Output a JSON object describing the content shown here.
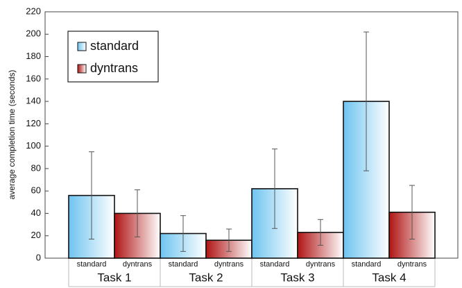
{
  "chart_data": {
    "type": "bar",
    "ylabel": "average completion time (seconds)",
    "categories": [
      "Task 1",
      "Task 2",
      "Task 3",
      "Task 4"
    ],
    "series": [
      {
        "name": "standard",
        "color": "#6ec4f0",
        "values": [
          56,
          22,
          62,
          140
        ],
        "errors": [
          39,
          16,
          35.5,
          62
        ]
      },
      {
        "name": "dyntrans",
        "color": "#b01414",
        "values": [
          40,
          16,
          23,
          41
        ],
        "errors": [
          21,
          10,
          11.5,
          24
        ]
      }
    ],
    "ylim": [
      0,
      220
    ],
    "yticks": [
      0,
      20,
      40,
      60,
      80,
      100,
      120,
      140,
      160,
      180,
      200,
      220
    ],
    "legend": "upper left"
  }
}
